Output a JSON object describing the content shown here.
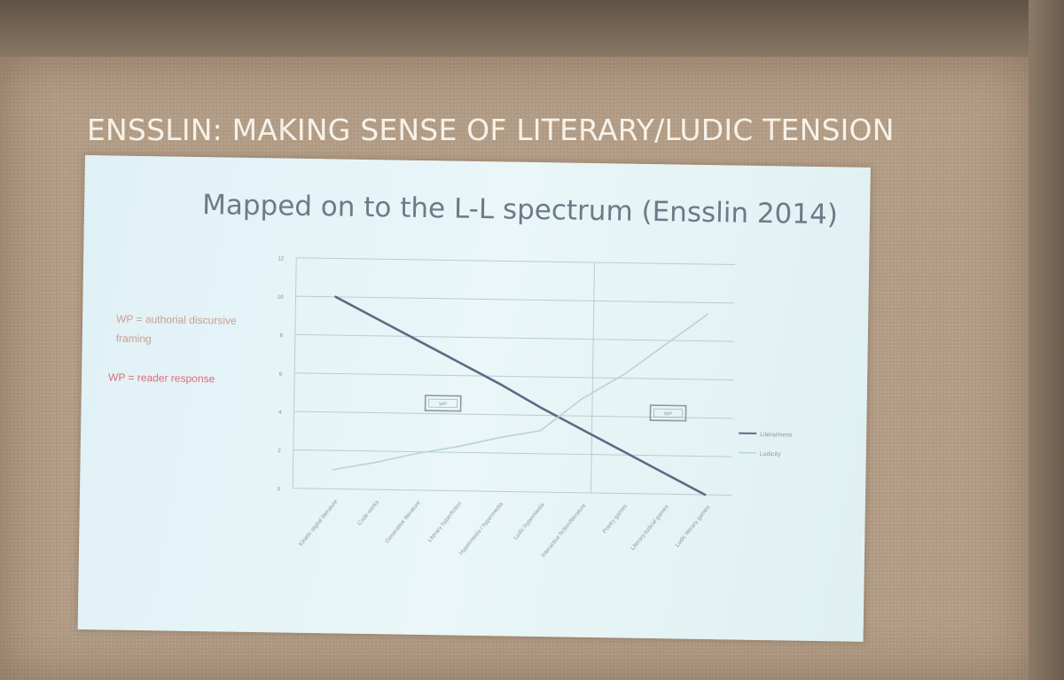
{
  "slide": {
    "title": "ENSSLIN: MAKING SENSE OF LITERARY/LUDIC TENSION"
  },
  "annotations": {
    "note_1": "WP = authorial discursive framing",
    "note_2": "WP = reader response",
    "box_left": "WP",
    "box_right": "WP"
  },
  "colors": {
    "literariness": "#5d6a84",
    "ludicity": "#b9d3d5",
    "note_1": "#c9a092",
    "note_2": "#e06a7a"
  },
  "chart_data": {
    "type": "line",
    "title": "Mapped on to the L-L spectrum (Ensslin 2014)",
    "xlabel": "",
    "ylabel": "",
    "categories": [
      "Kinetic digital literature",
      "Code works",
      "Generative literature",
      "Literary hyperfiction",
      "Hypermedia / hypermedia",
      "Ludic hypermedia",
      "Interactive fiction/literature",
      "Poetry games",
      "Literary-ludical games",
      "Ludic literary games"
    ],
    "ylim": [
      0,
      12
    ],
    "yticks": [
      0,
      2,
      4,
      6,
      8,
      10,
      12
    ],
    "grid": true,
    "legend_position": "right",
    "series": [
      {
        "name": "Literariness",
        "values": [
          10,
          8.9,
          7.8,
          6.7,
          5.6,
          4.4,
          3.3,
          2.2,
          1.1,
          0
        ]
      },
      {
        "name": "Ludicity",
        "values": [
          1,
          1.4,
          1.9,
          2.3,
          2.8,
          3.2,
          4.9,
          6.2,
          7.8,
          9.4
        ]
      }
    ]
  }
}
